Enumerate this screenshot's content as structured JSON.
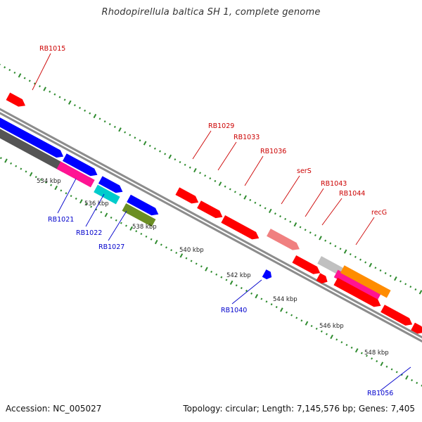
{
  "title": "Rhodopirellula baltica SH 1, complete genome",
  "footer": {
    "accession": "Accession: NC_005027",
    "summary": "Topology: circular; Length: 7,145,576 bp; Genes: 7,405"
  },
  "colors": {
    "backbone": "#8c8c8c",
    "tick": "#2e8b2e",
    "label_plus": "#cc0000",
    "label_minus": "#0000cc",
    "gene_red": "#ff0000",
    "gene_blue": "#0000ff",
    "gene_pink": "#ff1493",
    "gene_cyan": "#00cccc",
    "gene_olive": "#6b8e23",
    "gene_salmon": "#f08080",
    "gene_gray": "#c0c0c0",
    "gene_orange": "#ff8c00",
    "gene_dark": "#555555"
  },
  "scale_labels": [
    "534 kbp",
    "536 kbp",
    "538 kbp",
    "540 kbp",
    "542 kbp",
    "544 kbp",
    "546 kbp",
    "548 kbp"
  ],
  "gene_labels": [
    {
      "text": "RB1015",
      "strand": "plus"
    },
    {
      "text": "RB1029",
      "strand": "plus"
    },
    {
      "text": "RB1033",
      "strand": "plus"
    },
    {
      "text": "RB1036",
      "strand": "plus"
    },
    {
      "text": "serS",
      "strand": "plus"
    },
    {
      "text": "RB1043",
      "strand": "plus"
    },
    {
      "text": "RB1044",
      "strand": "plus"
    },
    {
      "text": "recG",
      "strand": "plus"
    },
    {
      "text": "RB1021",
      "strand": "minus"
    },
    {
      "text": "RB1022",
      "strand": "minus"
    },
    {
      "text": "RB1027",
      "strand": "minus"
    },
    {
      "text": "RB1040",
      "strand": "minus"
    },
    {
      "text": "RB1056",
      "strand": "minus"
    }
  ]
}
